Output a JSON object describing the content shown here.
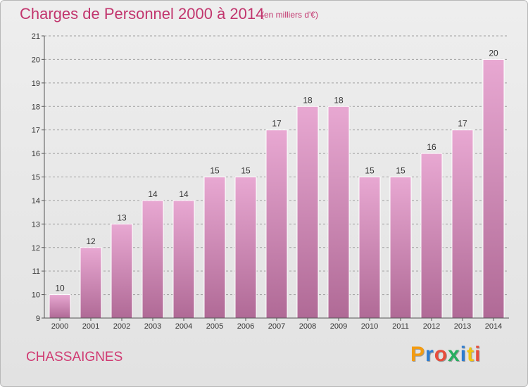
{
  "header": {
    "title": "Charges de Personnel 2000 à 2014",
    "subtitle": "(en milliers d'€)"
  },
  "footer": {
    "commune": "CHASSAIGNES",
    "logo": "Proxiti",
    "logo_colors": [
      "#f39c12",
      "#2e7dd1",
      "#e74c3c",
      "#27ae60",
      "#2e7dd1",
      "#f1c40f",
      "#e74c3c"
    ]
  },
  "colors": {
    "accent": "#c2366e",
    "bar_top": "#e8a8d2",
    "bar_bottom": "#b06a96",
    "grid": "#a0a0a0"
  },
  "chart_data": {
    "type": "bar",
    "title": "Charges de Personnel 2000 à 2014",
    "subtitle": "(en milliers d'€)",
    "xlabel": "",
    "ylabel": "",
    "categories": [
      "2000",
      "2001",
      "2002",
      "2003",
      "2004",
      "2005",
      "2006",
      "2007",
      "2008",
      "2009",
      "2010",
      "2011",
      "2012",
      "2013",
      "2014"
    ],
    "values": [
      10,
      12,
      13,
      14,
      14,
      15,
      15,
      17,
      18,
      18,
      15,
      15,
      16,
      17,
      20
    ],
    "ylim": [
      9,
      21
    ],
    "yticks": [
      9,
      10,
      11,
      12,
      13,
      14,
      15,
      16,
      17,
      18,
      19,
      20,
      21
    ],
    "grid": true,
    "data_labels": true
  }
}
